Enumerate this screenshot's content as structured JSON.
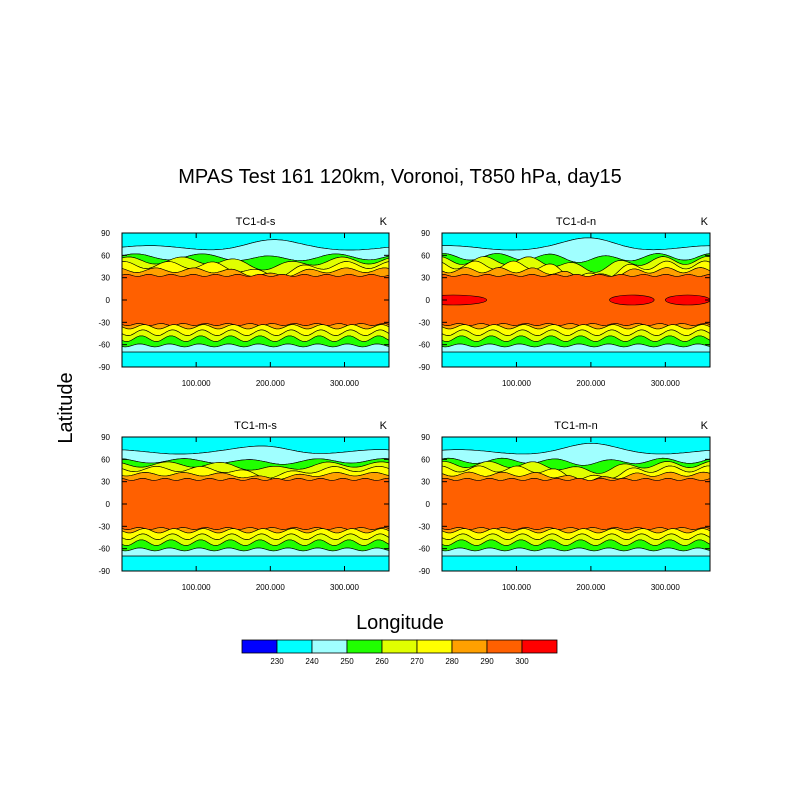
{
  "title": "MPAS Test 161 120km,  Voronoi, T850 hPa, day15",
  "xlabel": "Longitude",
  "ylabel": "Latitude",
  "unit": "K",
  "chart_data": {
    "type": "heatmap",
    "title": "MPAS Test 161 120km,  Voronoi, T850 hPa, day15",
    "xlabel": "Longitude",
    "ylabel": "Latitude",
    "xlim": [
      0,
      360
    ],
    "ylim": [
      -90,
      90
    ],
    "x_ticks": [
      100,
      200,
      300
    ],
    "x_tick_labels": [
      "100.000",
      "200.000",
      "300.000"
    ],
    "y_ticks": [
      -90,
      -60,
      -30,
      0,
      30,
      60,
      90
    ],
    "y_tick_labels": [
      "-90",
      "-60",
      "-30",
      "0",
      "30",
      "60",
      "90"
    ],
    "panels": [
      {
        "name": "TC1-d-s",
        "unit": "K"
      },
      {
        "name": "TC1-d-n",
        "unit": "K"
      },
      {
        "name": "TC1-m-s",
        "unit": "K"
      },
      {
        "name": "TC1-m-n",
        "unit": "K"
      }
    ],
    "colorbar": {
      "levels": [
        "230",
        "240",
        "250",
        "260",
        "270",
        "280",
        "290",
        "300"
      ],
      "colors": [
        "#0000ff",
        "#00ffff",
        "#a0ffff",
        "#20ff00",
        "#e0ff00",
        "#ffff00",
        "#ffa000",
        "#ff6000",
        "#ff0000"
      ]
    }
  }
}
